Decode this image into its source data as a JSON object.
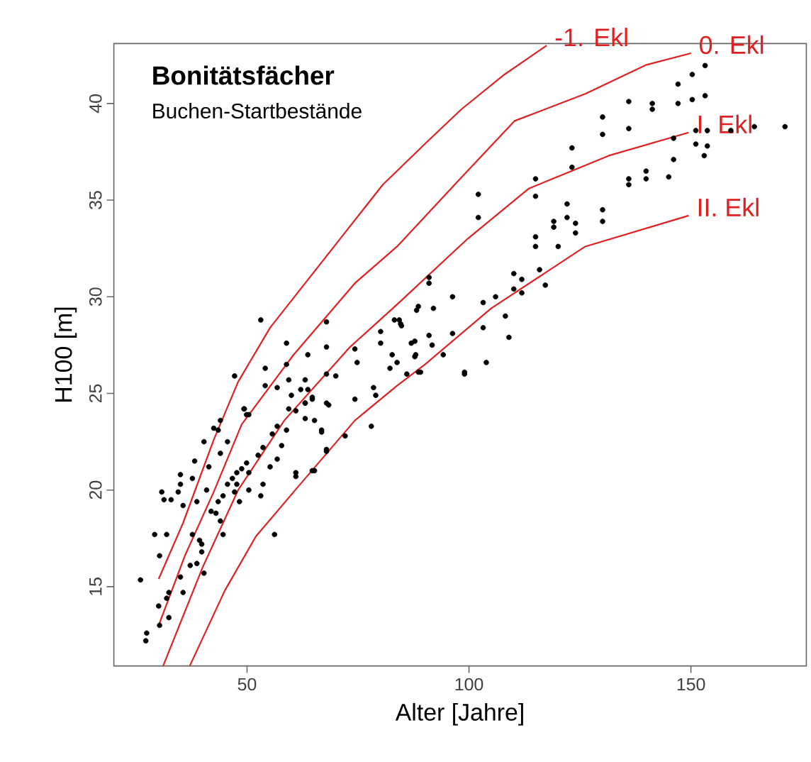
{
  "chart_data": {
    "type": "scatter",
    "title": "Bonitätsfächer",
    "subtitle": "Buchen-Startbestände",
    "xlabel": "Alter [Jahre]",
    "ylabel": "H100 [m]",
    "xlim": [
      20,
      176
    ],
    "ylim": [
      10.9,
      43.1
    ],
    "xticks": [
      50,
      100,
      150
    ],
    "yticks": [
      15,
      20,
      25,
      30,
      35,
      40
    ],
    "series": [
      {
        "marker": "circle",
        "color": "#000000",
        "x": [
          26.0,
          27.2,
          27.4,
          30.3,
          30.1,
          32.4,
          31.9,
          35.0,
          35.6,
          32.4,
          29.2,
          31.9,
          30.3,
          30.8,
          31.3,
          32.9,
          34.5,
          35.0,
          35.6,
          35.0,
          37.7,
          38.2,
          40.3,
          41.4,
          42.5,
          44.0,
          43.5,
          44.0,
          45.6,
          40.9,
          38.7,
          41.9,
          39.3,
          37.7,
          39.8,
          38.7,
          37.2,
          40.3,
          39.8,
          43.0,
          44.0,
          44.6,
          43.5,
          44.6,
          45.6,
          46.7,
          47.7,
          47.2,
          48.3,
          47.7,
          48.8,
          49.9,
          50.4,
          49.3,
          49.9,
          52.5,
          53.6,
          55.7,
          56.8,
          57.8,
          58.9,
          59.4,
          61.0,
          60.0,
          62.1,
          63.1,
          64.7,
          65.2,
          63.1,
          68.4,
          66.8,
          61.0,
          67.9,
          65.2,
          56.2,
          53.6,
          55.2,
          56.8,
          53.1,
          50.4,
          56.8,
          54.1,
          53.1,
          58.9,
          67.9,
          67.9,
          63.7,
          54.1,
          58.9,
          59.4,
          63.1,
          63.7,
          63.1,
          67.9,
          70.0,
          67.9,
          64.7,
          74.3,
          74.8,
          74.3,
          78.5,
          79.0,
          78.0,
          80.1,
          80.1,
          83.2,
          84.3,
          84.8,
          88.6,
          82.7,
          82.2,
          83.8,
          87.0,
          88.0,
          89.1,
          47.2,
          49.4,
          50.4,
          66.8,
          72.1,
          67.9,
          64.7,
          61.0,
          153.2,
          150.3,
          147.1,
          153.2,
          150.3,
          147.1,
          141.3,
          141.3,
          136.0,
          136.0,
          130.1,
          130.1,
          151.1,
          153.7,
          159.0,
          164.3,
          171.2,
          151.1,
          153.7,
          153.0,
          146.1,
          146.1,
          145.0,
          139.9,
          139.9,
          136.0,
          136.0,
          123.2,
          123.2,
          115.0,
          115.0,
          102.1,
          102.1,
          122.1,
          122.1,
          130.1,
          130.1,
          119.1,
          119.1,
          124.0,
          124.0,
          115.0,
          115.0,
          120.1,
          115.9,
          117.2,
          110.1,
          110.1,
          111.9,
          111.9,
          103.2,
          106.0,
          108.2,
          109.0,
          103.2,
          96.3,
          96.3,
          94.2,
          88.2,
          92.0,
          91.0,
          91.0,
          84.6,
          87.8,
          91.0,
          91.7,
          87.8,
          103.9,
          99.0,
          88.6,
          86.0,
          99.0
        ],
        "values": [
          15.35,
          12.2,
          12.6,
          13.0,
          14.0,
          14.7,
          14.4,
          15.5,
          14.7,
          13.4,
          17.7,
          17.7,
          16.6,
          19.9,
          19.5,
          19.5,
          19.9,
          20.3,
          19.2,
          20.8,
          20.6,
          21.5,
          22.5,
          21.2,
          23.2,
          23.6,
          23.1,
          21.9,
          22.5,
          20.0,
          19.4,
          18.9,
          17.4,
          17.7,
          16.8,
          16.2,
          16.1,
          15.7,
          17.2,
          18.8,
          18.4,
          17.7,
          19.4,
          19.7,
          20.3,
          20.6,
          20.3,
          19.9,
          19.4,
          20.9,
          21.1,
          21.4,
          20.9,
          24.2,
          23.9,
          21.8,
          22.2,
          22.9,
          23.3,
          22.3,
          23.1,
          24.2,
          24.1,
          24.9,
          25.2,
          24.5,
          24.7,
          23.6,
          23.7,
          24.4,
          23.1,
          20.9,
          22.0,
          21.0,
          17.7,
          20.3,
          21.2,
          21.6,
          19.7,
          20.0,
          25.3,
          25.4,
          28.8,
          27.6,
          28.7,
          27.4,
          27.0,
          26.3,
          26.5,
          25.7,
          25.7,
          25.2,
          24.5,
          26.0,
          25.9,
          24.5,
          24.8,
          27.3,
          26.6,
          24.7,
          25.3,
          24.9,
          23.3,
          28.2,
          27.6,
          28.8,
          28.8,
          28.5,
          29.5,
          27.0,
          26.3,
          26.6,
          27.6,
          27.0,
          26.1,
          25.9,
          24.2,
          23.9,
          23.0,
          22.8,
          22.1,
          21.0,
          20.7,
          41.96,
          41.5,
          41.0,
          40.4,
          40.2,
          40.0,
          40.0,
          39.7,
          40.1,
          38.7,
          39.3,
          38.4,
          38.6,
          38.6,
          38.6,
          38.8,
          38.8,
          37.9,
          37.8,
          37.3,
          38.2,
          37.1,
          36.2,
          36.5,
          36.1,
          36.1,
          35.8,
          37.7,
          36.7,
          36.1,
          35.2,
          35.3,
          34.1,
          34.8,
          34.1,
          34.5,
          33.9,
          33.9,
          33.6,
          33.8,
          33.3,
          33.1,
          32.6,
          32.6,
          31.4,
          30.6,
          31.2,
          30.4,
          30.9,
          30.2,
          29.7,
          30.0,
          29.0,
          27.9,
          28.4,
          30.0,
          28.1,
          27.0,
          29.3,
          29.4,
          31.0,
          30.7,
          28.6,
          27.7,
          28.0,
          27.5,
          26.9,
          26.6,
          26.1,
          26.1,
          26.0,
          26.0
        ]
      },
      {
        "type": "line",
        "marker": "none",
        "name": "-1. Ekl",
        "color": "#e02020",
        "x": [
          30.1,
          35.6,
          42.5,
          48.0,
          55.2,
          64.8,
          80.6,
          90.5,
          98.3,
          108.0,
          117.5
        ],
        "values": [
          15.4,
          18.3,
          22.6,
          25.6,
          28.4,
          31.2,
          35.8,
          38.0,
          39.7,
          41.5,
          43.0
        ]
      },
      {
        "type": "line",
        "marker": "none",
        "name": "0. Ekl",
        "color": "#e02020",
        "x": [
          30.1,
          36.0,
          42.5,
          48.8,
          60.5,
          74.3,
          83.8,
          97.6,
          110.3,
          126.2,
          140.0,
          150.0
        ],
        "values": [
          13.0,
          16.6,
          19.9,
          23.4,
          27.0,
          30.7,
          32.6,
          36.0,
          39.1,
          40.5,
          42.0,
          42.6
        ]
      },
      {
        "type": "line",
        "marker": "none",
        "name": "I. Ekl",
        "color": "#e02020",
        "x": [
          31.1,
          40.0,
          48.0,
          58.4,
          73.2,
          83.8,
          99.7,
          113.5,
          131.5,
          149.5
        ],
        "values": [
          10.9,
          16.0,
          20.0,
          23.6,
          27.4,
          29.6,
          33.0,
          35.6,
          37.3,
          38.5
        ]
      },
      {
        "type": "line",
        "marker": "none",
        "name": "II. Ekl",
        "color": "#e02020",
        "x": [
          37.1,
          45.0,
          52.0,
          60.5,
          74.3,
          83.8,
          90.1,
          105.0,
          126.2,
          149.5
        ],
        "values": [
          10.9,
          14.8,
          17.6,
          19.9,
          23.6,
          25.4,
          26.5,
          29.4,
          32.6,
          34.2
        ]
      }
    ]
  }
}
